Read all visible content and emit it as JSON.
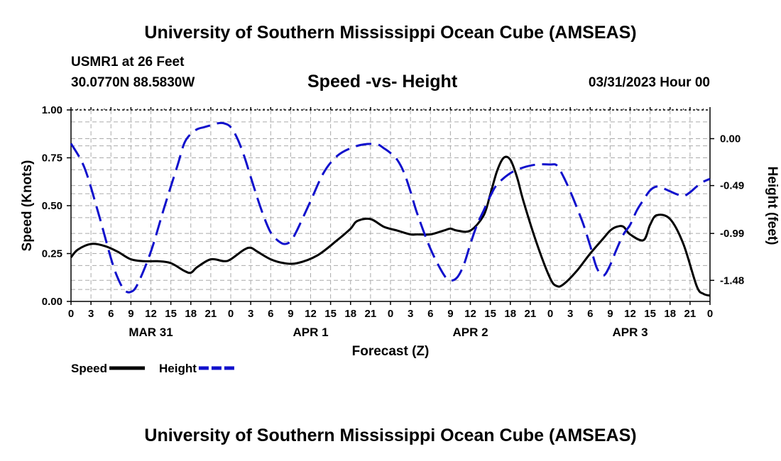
{
  "header": {
    "title": "University of Southern Mississippi Ocean Cube (AMSEAS)",
    "station": "USMR1 at 26 Feet",
    "location": "30.0770N  88.5830W",
    "chart_title": "Speed -vs- Height",
    "datetime": "03/31/2023 Hour 00"
  },
  "footer": {
    "title": "University of Southern Mississippi Ocean Cube (AMSEAS)"
  },
  "colors": {
    "speed": "#000000",
    "height": "#1010cc",
    "grid": "#aaaaaa"
  },
  "chart_data": {
    "type": "line",
    "xlabel": "Forecast (Z)",
    "ylabel": "Speed (Knots)",
    "ylabel_right": "Height (feet)",
    "xlim": [
      0,
      96
    ],
    "ylim": [
      0,
      1
    ],
    "ylim_right": [
      -1.7,
      0.3
    ],
    "y_ticks": [
      "0.00",
      "0.25",
      "0.50",
      "0.75",
      "1.00"
    ],
    "y_tick_values": [
      0,
      0.25,
      0.5,
      0.75,
      1.0
    ],
    "y_right_ticks": [
      "0.00",
      "-0.49",
      "-0.99",
      "-1.48"
    ],
    "y_right_tick_values": [
      0.0,
      -0.49,
      -0.99,
      -1.48
    ],
    "x_ticks": [
      "0",
      "3",
      "6",
      "9",
      "12",
      "15",
      "18",
      "21",
      "0",
      "3",
      "6",
      "9",
      "12",
      "15",
      "18",
      "21",
      "0",
      "3",
      "6",
      "9",
      "12",
      "15",
      "18",
      "21",
      "0",
      "3",
      "6",
      "9",
      "12",
      "15",
      "18",
      "21",
      "0"
    ],
    "x_tick_hours": [
      0,
      3,
      6,
      9,
      12,
      15,
      18,
      21,
      24,
      27,
      30,
      33,
      36,
      39,
      42,
      45,
      48,
      51,
      54,
      57,
      60,
      63,
      66,
      69,
      72,
      75,
      78,
      81,
      84,
      87,
      90,
      93,
      96
    ],
    "day_labels": [
      {
        "hour": 12,
        "label": "MAR 31"
      },
      {
        "hour": 36,
        "label": "APR 1"
      },
      {
        "hour": 60,
        "label": "APR 2"
      },
      {
        "hour": 84,
        "label": "APR 3"
      }
    ],
    "series": [
      {
        "name": "Speed",
        "axis": "left",
        "x": [
          0,
          1,
          3,
          5,
          7,
          9,
          11,
          13,
          15,
          17,
          18,
          19,
          21,
          23,
          24,
          26,
          27,
          28,
          30,
          32,
          34,
          37,
          40,
          42,
          43,
          45,
          47,
          49,
          51,
          52,
          54,
          56,
          57,
          58,
          60,
          62,
          63,
          64,
          65,
          66,
          67,
          68,
          70,
          72,
          73,
          74,
          76,
          78,
          80,
          81,
          82,
          83,
          84,
          86,
          87,
          88,
          90,
          92,
          94,
          95,
          96
        ],
        "values": [
          0.23,
          0.27,
          0.3,
          0.29,
          0.26,
          0.22,
          0.21,
          0.21,
          0.2,
          0.16,
          0.15,
          0.18,
          0.22,
          0.21,
          0.22,
          0.27,
          0.28,
          0.26,
          0.22,
          0.2,
          0.2,
          0.24,
          0.32,
          0.38,
          0.42,
          0.43,
          0.39,
          0.37,
          0.35,
          0.35,
          0.35,
          0.37,
          0.38,
          0.37,
          0.37,
          0.45,
          0.56,
          0.68,
          0.75,
          0.74,
          0.65,
          0.52,
          0.3,
          0.12,
          0.08,
          0.09,
          0.16,
          0.25,
          0.33,
          0.37,
          0.39,
          0.39,
          0.35,
          0.32,
          0.4,
          0.45,
          0.43,
          0.3,
          0.08,
          0.04,
          0.03
        ]
      },
      {
        "name": "Height",
        "axis": "right",
        "x": [
          0,
          2,
          4,
          6,
          7,
          8,
          9,
          10,
          12,
          14,
          16,
          17,
          18,
          19,
          20,
          21,
          22,
          23,
          24,
          25,
          26,
          27,
          28,
          29,
          30,
          31,
          32,
          33,
          34,
          36,
          38,
          40,
          42,
          44,
          46,
          47,
          48,
          49,
          50,
          51,
          52,
          54,
          56,
          57,
          58,
          59,
          60,
          61,
          62,
          63,
          64,
          66,
          68,
          70,
          72,
          73,
          74,
          75,
          76,
          77,
          78,
          79,
          80,
          81,
          82,
          83,
          84,
          85,
          86,
          87,
          88,
          89,
          90,
          91,
          92,
          93,
          94,
          95,
          96
        ],
        "values": [
          -0.05,
          -0.3,
          -0.75,
          -1.25,
          -1.45,
          -1.58,
          -1.6,
          -1.52,
          -1.18,
          -0.72,
          -0.28,
          -0.05,
          0.05,
          0.1,
          0.12,
          0.14,
          0.16,
          0.16,
          0.12,
          0.0,
          -0.18,
          -0.4,
          -0.62,
          -0.82,
          -0.98,
          -1.06,
          -1.1,
          -1.07,
          -0.95,
          -0.65,
          -0.35,
          -0.18,
          -0.1,
          -0.06,
          -0.06,
          -0.1,
          -0.15,
          -0.22,
          -0.35,
          -0.55,
          -0.78,
          -1.15,
          -1.42,
          -1.48,
          -1.45,
          -1.32,
          -1.1,
          -0.9,
          -0.75,
          -0.6,
          -0.48,
          -0.36,
          -0.3,
          -0.27,
          -0.27,
          -0.28,
          -0.4,
          -0.55,
          -0.72,
          -0.9,
          -1.12,
          -1.35,
          -1.43,
          -1.32,
          -1.15,
          -1.0,
          -0.9,
          -0.75,
          -0.64,
          -0.54,
          -0.5,
          -0.52,
          -0.55,
          -0.58,
          -0.6,
          -0.56,
          -0.5,
          -0.45,
          -0.42
        ]
      }
    ],
    "legend": [
      {
        "label": "Speed",
        "series": "Speed"
      },
      {
        "label": "Height",
        "series": "Height"
      }
    ]
  }
}
